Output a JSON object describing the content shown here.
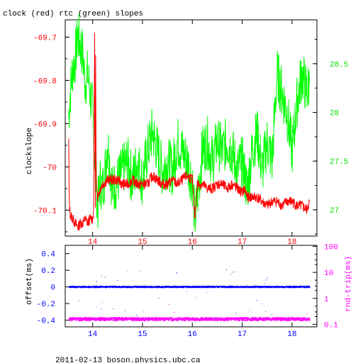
{
  "chart_data": [
    {
      "type": "line",
      "title": "clock (red) rtc (green) slopes",
      "ylabel_left": "clockslope",
      "xlim": [
        13.45,
        18.5
      ],
      "x_ticks": [
        14,
        15,
        16,
        17,
        18
      ],
      "y_left_lim": [
        -70.16,
        -69.66
      ],
      "y_left_ticks": [
        -69.7,
        -69.8,
        -69.9,
        -70,
        -70.1
      ],
      "y_left_tick_labels": [
        "-69.7",
        "-69.8",
        "-69.9",
        "-70",
        "-70.1"
      ],
      "y_right_lim": [
        26.73,
        28.95
      ],
      "y_right_ticks": [
        27,
        27.5,
        28,
        28.5
      ],
      "y_right_tick_labels": [
        "27",
        "27.5",
        "28",
        "28.5"
      ],
      "series": [
        {
          "axis": "left",
          "color": "#ff0000",
          "x": [
            13.52,
            13.53,
            13.55,
            13.6,
            13.65,
            13.7,
            13.75,
            13.8,
            13.85,
            13.9,
            13.95,
            14.0,
            14.02,
            14.04,
            14.05,
            14.055,
            14.06,
            14.07,
            14.09,
            14.1,
            14.15,
            14.2,
            14.3,
            14.4,
            14.5,
            14.6,
            14.7,
            14.8,
            14.9,
            15.0,
            15.1,
            15.2,
            15.3,
            15.4,
            15.5,
            15.6,
            15.7,
            15.8,
            15.9,
            16.0,
            16.05,
            16.1,
            16.2,
            16.3,
            16.4,
            16.5,
            16.6,
            16.7,
            16.8,
            16.9,
            17.0,
            17.05,
            17.1,
            17.2,
            17.3,
            17.4,
            17.5,
            17.6,
            17.7,
            17.8,
            17.9,
            18.0,
            18.1,
            18.2,
            18.3,
            18.35
          ],
          "y": [
            -69.94,
            -70.08,
            -70.11,
            -70.12,
            -70.13,
            -70.14,
            -70.13,
            -70.13,
            -70.12,
            -70.13,
            -70.12,
            -70.12,
            -70.1,
            -69.7,
            -70.0,
            -70.1,
            -69.75,
            -70.0,
            -70.05,
            -70.07,
            -70.05,
            -70.04,
            -70.03,
            -70.03,
            -70.03,
            -70.04,
            -70.04,
            -70.03,
            -70.04,
            -70.04,
            -70.04,
            -70.02,
            -70.03,
            -70.04,
            -70.04,
            -70.03,
            -70.04,
            -70.03,
            -70.02,
            -70.03,
            -70.12,
            -70.04,
            -70.04,
            -70.05,
            -70.05,
            -70.04,
            -70.04,
            -70.05,
            -70.04,
            -70.05,
            -70.06,
            -70.05,
            -70.07,
            -70.07,
            -70.07,
            -70.08,
            -70.09,
            -70.08,
            -70.08,
            -70.09,
            -70.08,
            -70.08,
            -70.09,
            -70.09,
            -70.1,
            -70.08
          ]
        },
        {
          "axis": "right",
          "color": "#00ff00",
          "x": [
            13.52,
            13.55,
            13.6,
            13.65,
            13.7,
            13.75,
            13.8,
            13.85,
            13.9,
            13.95,
            14.0,
            14.05,
            14.1,
            14.15,
            14.2,
            14.25,
            14.3,
            14.4,
            14.5,
            14.6,
            14.7,
            14.8,
            14.9,
            15.0,
            15.1,
            15.2,
            15.3,
            15.4,
            15.5,
            15.6,
            15.7,
            15.8,
            15.9,
            16.0,
            16.05,
            16.1,
            16.2,
            16.3,
            16.4,
            16.5,
            16.6,
            16.7,
            16.8,
            16.9,
            17.0,
            17.1,
            17.2,
            17.3,
            17.4,
            17.5,
            17.6,
            17.7,
            17.8,
            17.9,
            18.0,
            18.1,
            18.2,
            18.3,
            18.35
          ],
          "y": [
            27.95,
            28.2,
            28.45,
            28.55,
            28.8,
            28.7,
            28.6,
            28.3,
            28.4,
            28.2,
            28.0,
            27.5,
            27.0,
            27.3,
            27.2,
            27.4,
            27.7,
            27.2,
            27.3,
            27.4,
            27.5,
            27.3,
            27.5,
            27.3,
            27.6,
            27.8,
            27.6,
            27.4,
            27.5,
            27.4,
            27.7,
            27.6,
            27.5,
            27.3,
            26.9,
            27.1,
            27.6,
            27.7,
            27.5,
            27.7,
            27.6,
            27.7,
            27.6,
            27.4,
            27.5,
            27.2,
            27.6,
            27.8,
            27.4,
            27.7,
            27.5,
            28.4,
            28.2,
            28.0,
            27.6,
            28.1,
            28.4,
            28.2,
            28.3
          ]
        }
      ]
    },
    {
      "type": "scatter",
      "ylabel_left": "offset(ms)",
      "ylabel_right": "rnd-trip(ms)",
      "xlim": [
        13.45,
        18.5
      ],
      "x_ticks": [
        14,
        15,
        16,
        17,
        18
      ],
      "x_tick_labels": [
        "14",
        "15",
        "16",
        "17",
        "18"
      ],
      "y_left_lim": [
        -0.48,
        0.5
      ],
      "y_left_ticks": [
        0.4,
        0.2,
        0,
        -0.2,
        -0.4
      ],
      "y_left_tick_labels": [
        "0.4",
        "0.2",
        "0",
        "-0.2",
        "-0.4"
      ],
      "y_right_log": true,
      "y_right_lim": [
        0.08,
        110
      ],
      "y_right_ticks": [
        100,
        10,
        1,
        0.1
      ],
      "y_right_tick_labels": [
        "100",
        "10",
        "1",
        "0.1"
      ],
      "series": [
        {
          "axis": "left",
          "color": "#0000ff",
          "description_level": 0.0,
          "x_range": [
            13.52,
            18.35
          ]
        },
        {
          "axis": "right",
          "color": "#ff00ff",
          "description_level": 0.16,
          "x_range": [
            13.52,
            18.35
          ]
        }
      ]
    }
  ],
  "footer": "2011-02-13 boson.physics.ubc.ca",
  "colors": {
    "left_axis": "#ff0000",
    "right_axis": "#00ff00",
    "offset_axis": "#0000ff",
    "rtt_axis": "#ff00ff",
    "frame": "#000000"
  }
}
